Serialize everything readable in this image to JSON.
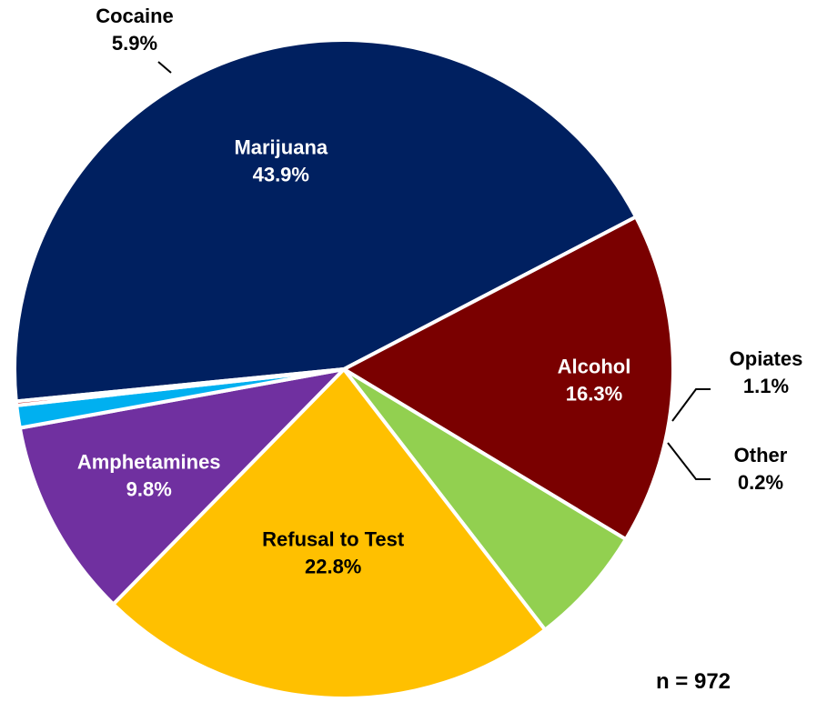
{
  "chart_data": {
    "type": "pie",
    "title": "",
    "slices": [
      {
        "name": "Marijuana",
        "value": 43.9,
        "value_label": "43.9%",
        "color": "#002060",
        "label_color": "#ffffff"
      },
      {
        "name": "Alcohol",
        "value": 16.3,
        "value_label": "16.3%",
        "color": "#7a0000",
        "label_color": "#ffffff"
      },
      {
        "name": "Cocaine",
        "value": 5.9,
        "value_label": "5.9%",
        "color": "#92d050",
        "label_color": "#000000"
      },
      {
        "name": "Refusal to Test",
        "value": 22.8,
        "value_label": "22.8%",
        "color": "#ffc000",
        "label_color": "#000000"
      },
      {
        "name": "Amphetamines",
        "value": 9.8,
        "value_label": "9.8%",
        "color": "#7030a0",
        "label_color": "#ffffff"
      },
      {
        "name": "Opiates",
        "value": 1.1,
        "value_label": "1.1%",
        "color": "#00b0f0",
        "label_color": "#000000"
      },
      {
        "name": "Other",
        "value": 0.2,
        "value_label": "0.2%",
        "color": "#c00000",
        "label_color": "#000000"
      }
    ],
    "sample_size_note": "n = 972"
  }
}
